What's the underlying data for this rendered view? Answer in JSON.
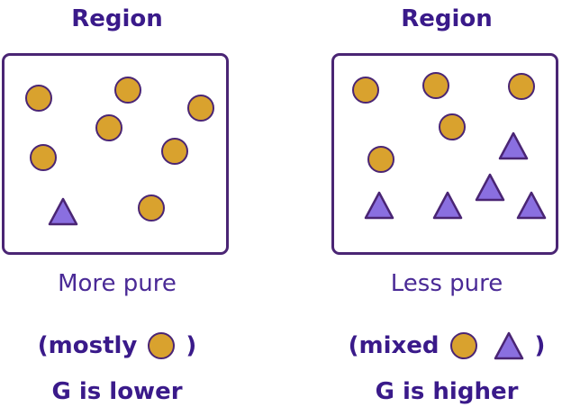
{
  "colors": {
    "circle_fill": "#d9a22e",
    "triangle_fill": "#8a6fe0",
    "outline": "#4a2574",
    "heading_text": "#3a1a8a",
    "caption_text": "#4a2a96"
  },
  "shapes": {
    "circle_icon": "circle-icon",
    "triangle_icon": "triangle-icon"
  },
  "left": {
    "title": "Region",
    "caption": "More pure",
    "composition_open": "(mostly",
    "composition_close": ")",
    "verdict": "G is lower",
    "circle_count": 7,
    "triangle_count": 1
  },
  "right": {
    "title": "Region",
    "caption": "Less pure",
    "composition_open": "(mixed",
    "composition_close": ")",
    "verdict": "G is higher",
    "circle_count": 5,
    "triangle_count": 5
  }
}
